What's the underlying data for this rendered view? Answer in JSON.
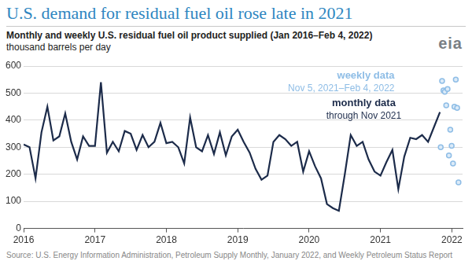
{
  "chart_data": {
    "type": "line",
    "title": "U.S. demand for residual fuel oil rose late in 2021",
    "subtitle": "Monthly and weekly U.S. residual fuel oil product supplied (Jan 2016–Feb 4, 2022)",
    "ylabel": "thousand barrels per day",
    "logo": "eia",
    "source": "Source: U.S. Energy Information Administration, Petroleum Supply Monthly, January 2022, and Weekly Petroleum Status Report",
    "xlim": [
      2016,
      2022.15
    ],
    "xticks": [
      2016,
      2017,
      2018,
      2019,
      2020,
      2021,
      2022
    ],
    "ylim": [
      0,
      600
    ],
    "yticks": [
      0,
      100,
      200,
      300,
      400,
      500,
      600
    ],
    "grid": true,
    "series": [
      {
        "name": "monthly data",
        "annotation": "through Nov 2021",
        "type": "line",
        "color": "#1c2b4a",
        "line_style": "solid",
        "marker": "none",
        "x": [
          2016,
          2016.083,
          2016.167,
          2016.25,
          2016.333,
          2016.417,
          2016.5,
          2016.583,
          2016.667,
          2016.75,
          2016.833,
          2016.917,
          2017,
          2017.083,
          2017.167,
          2017.25,
          2017.333,
          2017.417,
          2017.5,
          2017.583,
          2017.667,
          2017.75,
          2017.833,
          2017.917,
          2018,
          2018.083,
          2018.167,
          2018.25,
          2018.333,
          2018.417,
          2018.5,
          2018.583,
          2018.667,
          2018.75,
          2018.833,
          2018.917,
          2019,
          2019.083,
          2019.167,
          2019.25,
          2019.333,
          2019.417,
          2019.5,
          2019.583,
          2019.667,
          2019.75,
          2019.833,
          2019.917,
          2020,
          2020.083,
          2020.167,
          2020.25,
          2020.333,
          2020.417,
          2020.5,
          2020.583,
          2020.667,
          2020.75,
          2020.833,
          2020.917,
          2021,
          2021.083,
          2021.167,
          2021.25,
          2021.333,
          2021.417,
          2021.5,
          2021.583,
          2021.667,
          2021.75,
          2021.833
        ],
        "values": [
          310,
          300,
          185,
          355,
          450,
          325,
          340,
          425,
          320,
          255,
          340,
          305,
          305,
          540,
          280,
          320,
          285,
          360,
          350,
          290,
          345,
          300,
          320,
          390,
          315,
          320,
          300,
          240,
          410,
          300,
          285,
          345,
          275,
          355,
          270,
          340,
          365,
          320,
          280,
          220,
          180,
          195,
          320,
          345,
          330,
          305,
          320,
          210,
          285,
          230,
          185,
          90,
          75,
          65,
          200,
          345,
          305,
          320,
          255,
          210,
          195,
          245,
          290,
          145,
          265,
          335,
          330,
          345,
          320,
          375,
          430
        ]
      },
      {
        "name": "weekly data",
        "annotation": "Nov 5, 2021–Feb 4, 2022",
        "type": "scatter",
        "color": "#8ebde6",
        "marker": "circle",
        "x": [
          2021.844,
          2021.863,
          2021.882,
          2021.901,
          2021.921,
          2021.94,
          2021.959,
          2021.978,
          2021.997,
          2022.016,
          2022.036,
          2022.055,
          2022.074,
          2022.093
        ],
        "values": [
          300,
          545,
          510,
          505,
          455,
          515,
          270,
          365,
          305,
          240,
          450,
          550,
          445,
          170
        ]
      }
    ]
  }
}
